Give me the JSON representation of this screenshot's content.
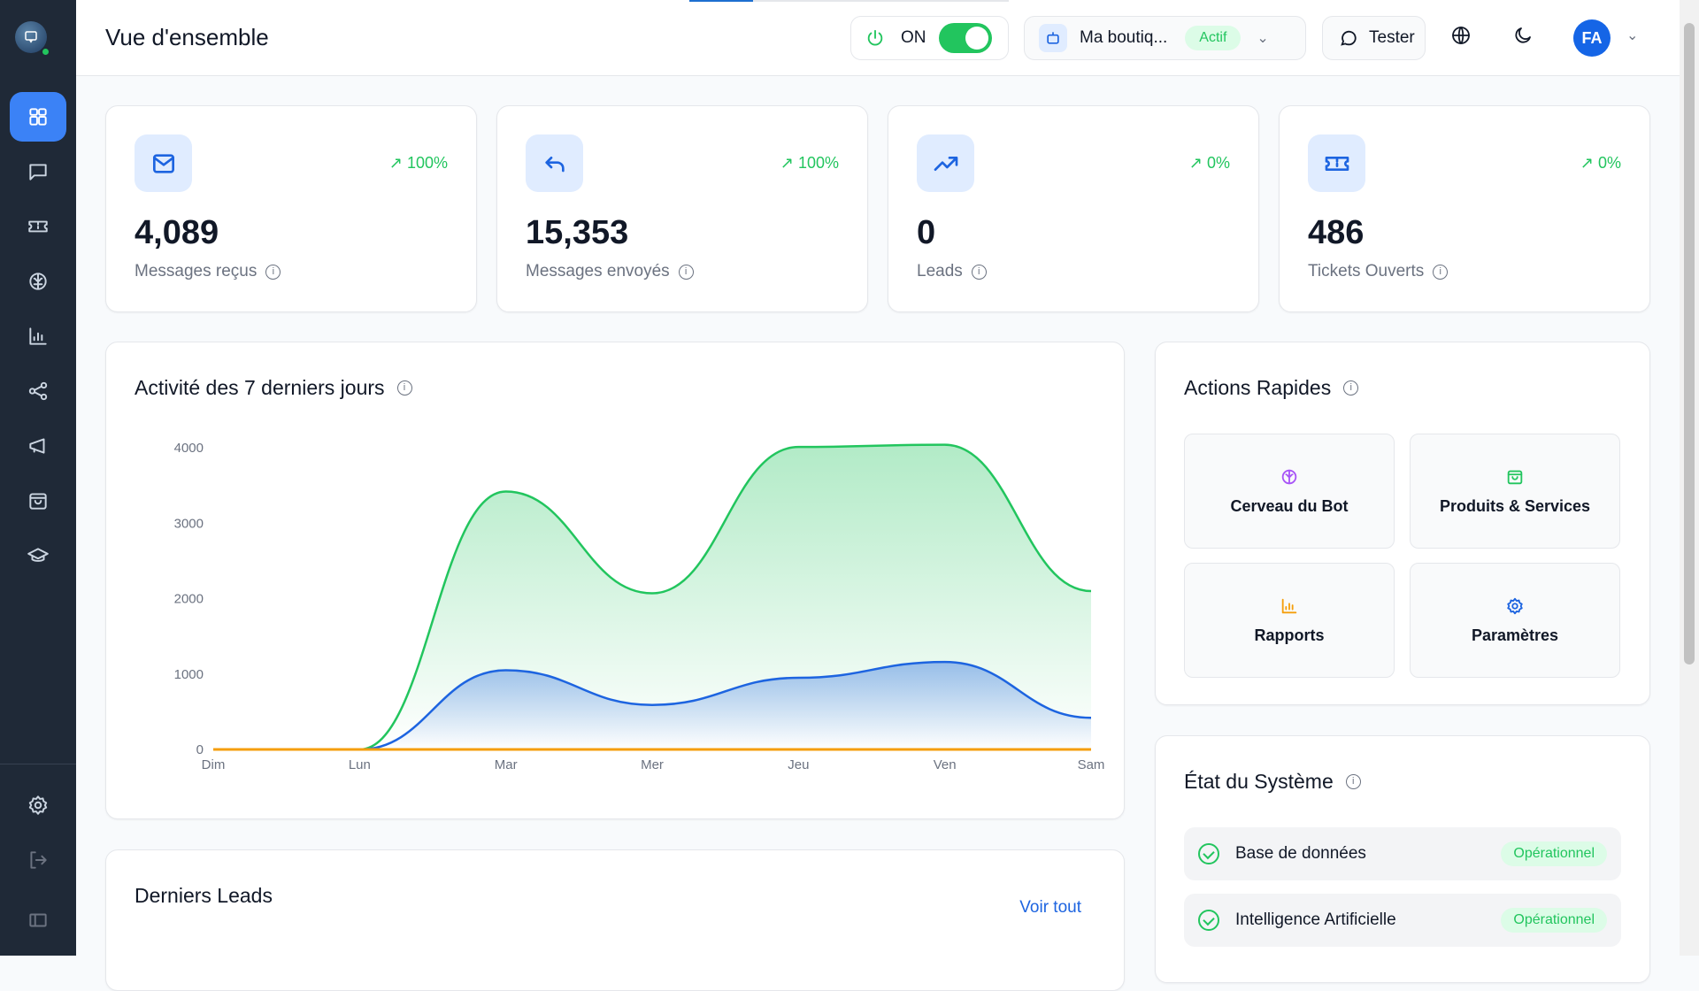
{
  "header": {
    "title": "Vue d'ensemble",
    "power_label": "ON",
    "bot_name": "Ma boutiq...",
    "bot_status": "Actif",
    "tester_label": "Tester",
    "avatar_initials": "FA"
  },
  "sidebar": {
    "items": [
      "dashboard",
      "conversations",
      "tickets",
      "bot-brain",
      "reports",
      "integrations",
      "campaigns",
      "products",
      "training"
    ],
    "bottom": [
      "settings",
      "logout",
      "collapse-sidebar"
    ]
  },
  "stats": [
    {
      "icon": "mail-icon",
      "trend": "100%",
      "value": "4,089",
      "label": "Messages reçus"
    },
    {
      "icon": "reply-icon",
      "trend": "100%",
      "value": "15,353",
      "label": "Messages envoyés"
    },
    {
      "icon": "trending-up-icon",
      "trend": "0%",
      "value": "0",
      "label": "Leads"
    },
    {
      "icon": "ticket-icon",
      "trend": "0%",
      "value": "486",
      "label": "Tickets Ouverts"
    }
  ],
  "activity": {
    "title": "Activité des 7 derniers jours"
  },
  "chart_data": {
    "type": "area",
    "categories": [
      "Dim",
      "Lun",
      "Mar",
      "Mer",
      "Jeu",
      "Ven",
      "Sam"
    ],
    "ylim": [
      0,
      4000
    ],
    "yticks": [
      0,
      1000,
      2000,
      3000,
      4000
    ],
    "grid": false,
    "series": [
      {
        "color": "#22c55e",
        "values": [
          0,
          0,
          3420,
          2070,
          4010,
          4040,
          2100
        ]
      },
      {
        "color": "#1d64e0",
        "values": [
          0,
          0,
          1050,
          590,
          950,
          1160,
          420
        ]
      },
      {
        "color": "#f59e0b",
        "values": [
          0,
          0,
          0,
          0,
          0,
          0,
          0
        ]
      }
    ]
  },
  "quick_actions": {
    "title": "Actions Rapides",
    "items": [
      {
        "label": "Cerveau du Bot",
        "color": "#a855f7"
      },
      {
        "label": "Produits & Services",
        "color": "#22c55e"
      },
      {
        "label": "Rapports",
        "color": "#f59e0b"
      },
      {
        "label": "Paramètres",
        "color": "#1d64e0"
      }
    ]
  },
  "system": {
    "title": "État du Système",
    "items": [
      {
        "label": "Base de données",
        "status": "Opérationnel"
      },
      {
        "label": "Intelligence Artificielle",
        "status": "Opérationnel"
      }
    ]
  },
  "leads": {
    "title": "Derniers Leads",
    "link": "Voir tout"
  }
}
